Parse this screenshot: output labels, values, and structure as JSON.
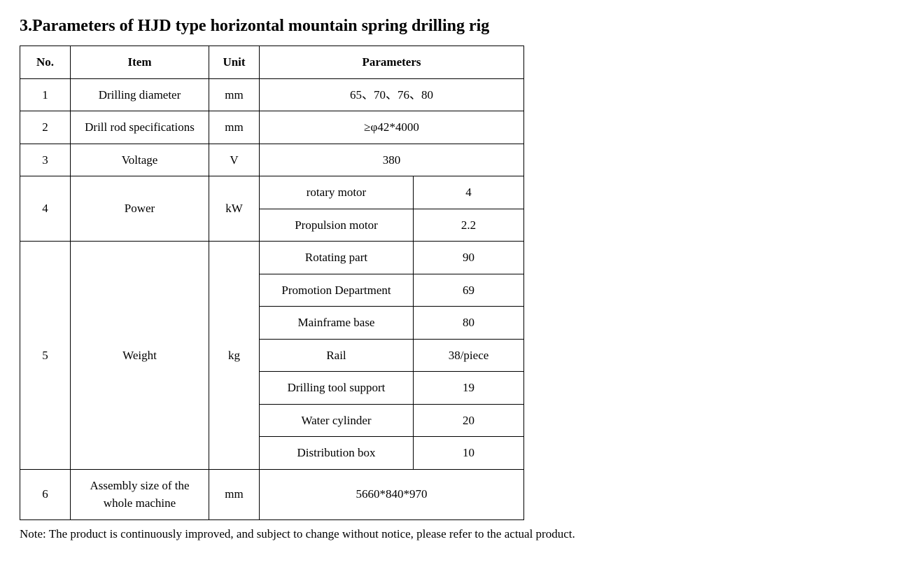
{
  "title": "3.Parameters of HJD type horizontal mountain spring drilling rig",
  "headers": {
    "no": "No.",
    "item": "Item",
    "unit": "Unit",
    "parameters": "Parameters"
  },
  "rows": {
    "r1": {
      "no": "1",
      "item": "Drilling diameter",
      "unit": "mm",
      "param": "65、70、76、80"
    },
    "r2": {
      "no": "2",
      "item": "Drill rod specifications",
      "unit": "mm",
      "param": "≥φ42*4000"
    },
    "r3": {
      "no": "3",
      "item": "Voltage",
      "unit": "V",
      "param": "380"
    },
    "r4": {
      "no": "4",
      "item": "Power",
      "unit": "kW",
      "sub1_label": "rotary motor",
      "sub1_value": "4",
      "sub2_label": "Propulsion motor",
      "sub2_value": "2.2"
    },
    "r5": {
      "no": "5",
      "item": "Weight",
      "unit": "kg",
      "sub1_label": "Rotating part",
      "sub1_value": "90",
      "sub2_label": "Promotion Department",
      "sub2_value": "69",
      "sub3_label": "Mainframe base",
      "sub3_value": "80",
      "sub4_label": "Rail",
      "sub4_value": "38/piece",
      "sub5_label": "Drilling tool support",
      "sub5_value": "19",
      "sub6_label": "Water cylinder",
      "sub6_value": "20",
      "sub7_label": "Distribution box",
      "sub7_value": "10"
    },
    "r6": {
      "no": "6",
      "item": "Assembly size of the whole machine",
      "unit": "mm",
      "param": "5660*840*970"
    }
  },
  "note": "Note: The product is continuously improved, and subject to change without notice, please refer to the actual product."
}
